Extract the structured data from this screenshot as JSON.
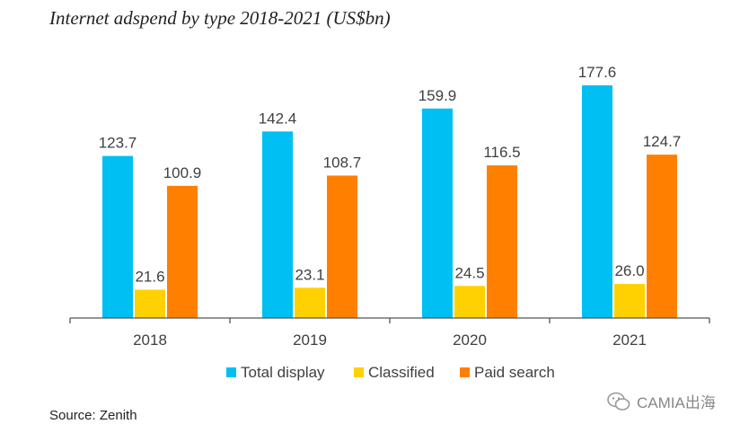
{
  "title": "Internet adspend by type 2018-2021 (US$bn)",
  "source": "Source: Zenith",
  "watermark": "CAMIA出海",
  "colors": {
    "Total display": "#00BFF3",
    "Classified": "#FFD100",
    "Paid search": "#FF8000",
    "axis": "#555555"
  },
  "chart_data": {
    "type": "bar",
    "title": "Internet adspend by type 2018-2021 (US$bn)",
    "categories": [
      "2018",
      "2019",
      "2020",
      "2021"
    ],
    "series": [
      {
        "name": "Total display",
        "values": [
          123.7,
          142.4,
          159.9,
          177.6
        ]
      },
      {
        "name": "Classified",
        "values": [
          21.6,
          23.1,
          24.5,
          26.0
        ]
      },
      {
        "name": "Paid search",
        "values": [
          100.9,
          108.7,
          116.5,
          124.7
        ]
      }
    ],
    "value_labels": [
      [
        "123.7",
        "142.4",
        "159.9",
        "177.6"
      ],
      [
        "21.6",
        "23.1",
        "24.5",
        "26.0"
      ],
      [
        "100.9",
        "108.7",
        "116.5",
        "124.7"
      ]
    ],
    "xlabel": "",
    "ylabel": "",
    "ylim": [
      0,
      177.6
    ],
    "grid": false,
    "legend_position": "bottom"
  }
}
